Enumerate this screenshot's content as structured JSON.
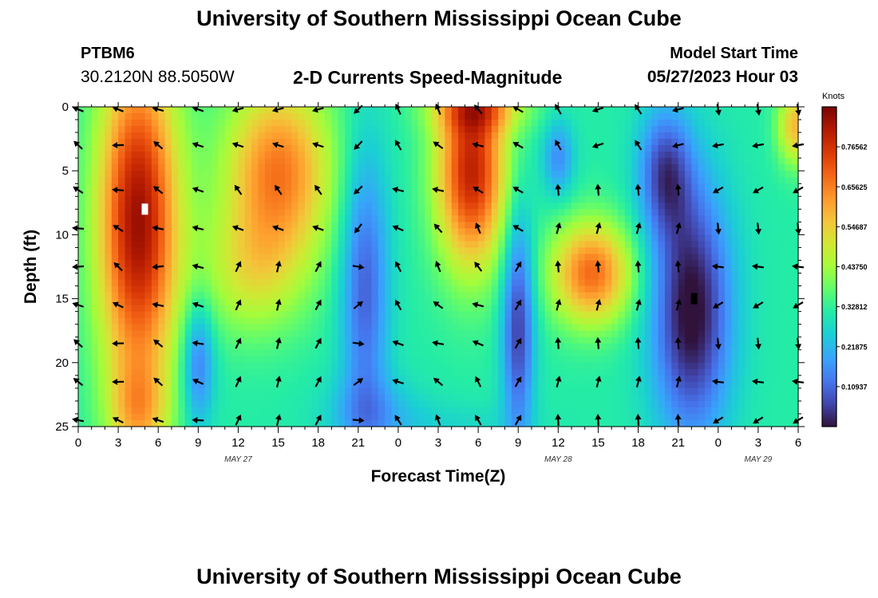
{
  "page": {
    "title": "University of Southern Mississippi Ocean Cube",
    "station_id": "PTBM6",
    "coords": "30.2120N  88.5050W",
    "subtitle": "2-D Currents Speed-Magnitude",
    "model_start_label": "Model Start Time",
    "model_start_value": "05/27/2023 Hour 03",
    "bottom_title": "University of Southern Mississippi Ocean Cube"
  },
  "chart_data": {
    "type": "heatmap",
    "title": "2-D Currents Speed-Magnitude",
    "xlabel": "Forecast Time(Z)",
    "ylabel": "Depth (ft)",
    "x_tick_labels": [
      "0",
      "3",
      "6",
      "9",
      "12",
      "15",
      "18",
      "21",
      "0",
      "3",
      "6",
      "9",
      "12",
      "15",
      "18",
      "21",
      "0",
      "3",
      "6"
    ],
    "x_range_hours": [
      0,
      54
    ],
    "date_labels": [
      {
        "text": "MAY 27",
        "hour": 12
      },
      {
        "text": "MAY 28",
        "hour": 36
      },
      {
        "text": "MAY 29",
        "hour": 51
      }
    ],
    "y_ticks": [
      0,
      5,
      10,
      15,
      20,
      25
    ],
    "y_range_ft": [
      0,
      25
    ],
    "colorbar": {
      "unit": "Knots",
      "range": [
        0,
        0.875
      ],
      "tick_labels": [
        "0.76562",
        "0.65625",
        "0.54687",
        "0.43750",
        "0.32812",
        "0.21875",
        "0.10937"
      ],
      "tick_values": [
        0.76562,
        0.65625,
        0.54687,
        0.4375,
        0.32812,
        0.21875,
        0.10937
      ]
    },
    "arrow_depths_ft": [
      0.2,
      3,
      6.5,
      9.5,
      12.5,
      15.5,
      18.5,
      21.5,
      24.5
    ],
    "arrow_hours": [
      0,
      3,
      6,
      9,
      12,
      15,
      18,
      21,
      24,
      27,
      30,
      33,
      36,
      39,
      42,
      45,
      48,
      51,
      54
    ],
    "speed_description": "High speeds (~0.7 kn) hours 1-8 across depth and hours 26-32 upper layer; minimum speeds (~0.05 kn) near hours 45-50 at mid depth."
  }
}
